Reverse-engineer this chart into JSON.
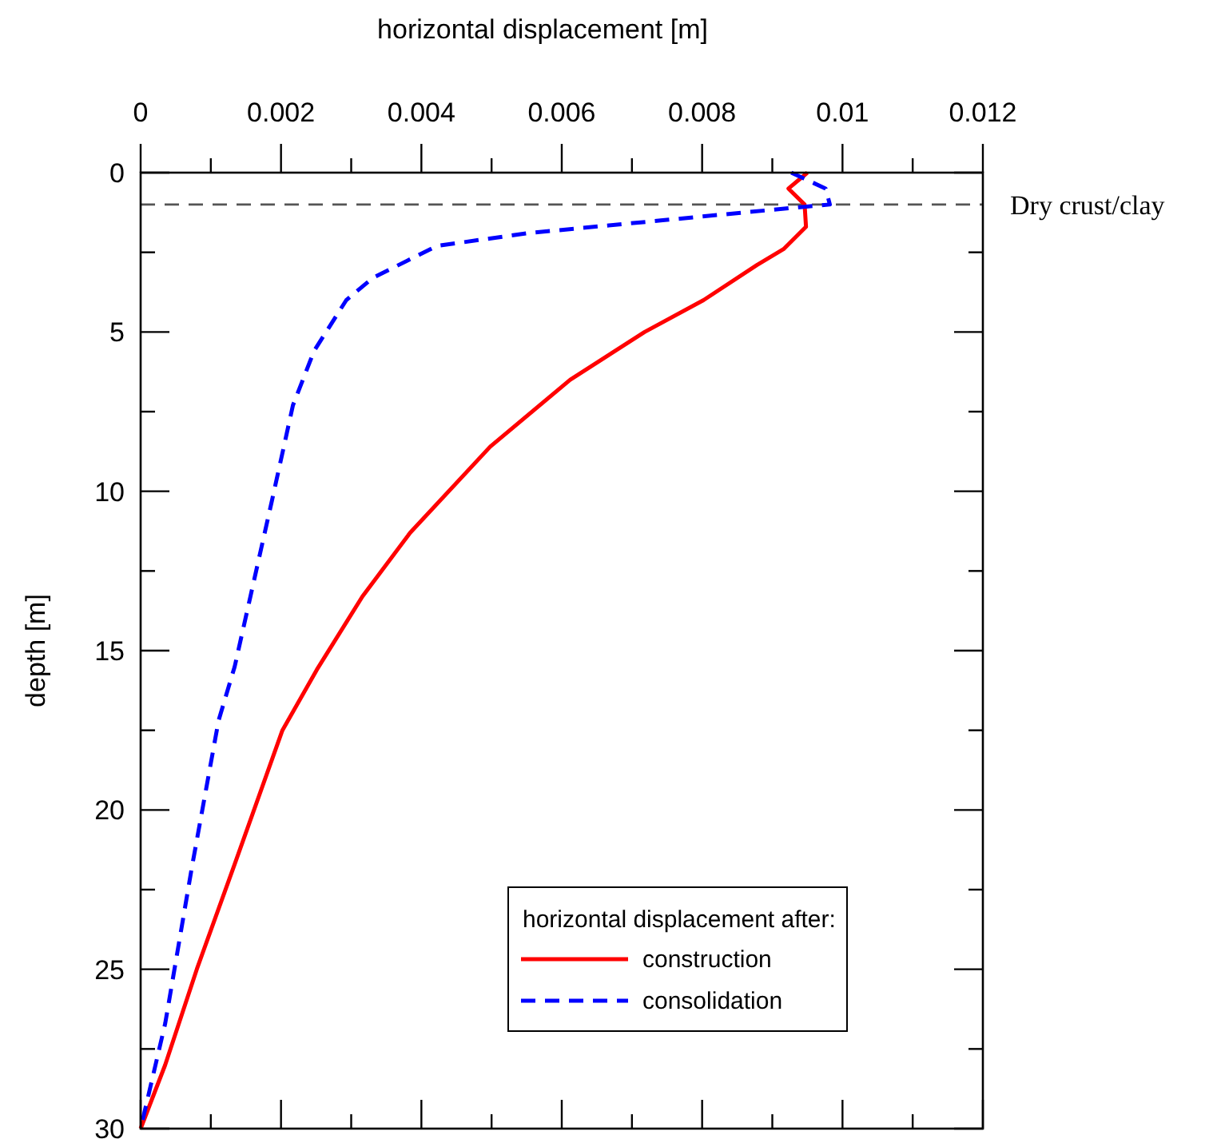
{
  "chart_data": {
    "type": "line",
    "xlabel": "horizontal displacement [m]",
    "ylabel": "depth [m]",
    "legend_title": "horizontal displacement after:",
    "legend": "bottom right",
    "xlim": [
      0,
      0.012
    ],
    "xticks": [
      0,
      {
        "value": 0.001,
        "label": null
      },
      0.002,
      {
        "value": 0.003,
        "label": null
      },
      0.004,
      {
        "value": 0.005,
        "label": null
      },
      0.006,
      {
        "value": 0.007,
        "label": null
      },
      0.008,
      {
        "value": 0.009,
        "label": null
      },
      0.01,
      {
        "value": 0.011,
        "label": null
      },
      0.012
    ],
    "ylim": [
      30,
      0
    ],
    "yticks": [
      0,
      {
        "value": 2.5,
        "label": null
      },
      5,
      {
        "value": 7.5,
        "label": null
      },
      10,
      {
        "value": 12.5,
        "label": null
      },
      15,
      {
        "value": 17.5,
        "label": null
      },
      20,
      {
        "value": 22.5,
        "label": null
      },
      25,
      {
        "value": 27.5,
        "label": null
      },
      30
    ],
    "ref_lines": [
      {
        "axis": "y",
        "value": 1,
        "label": "Dry crust/clay",
        "color": "#555555",
        "line_style": "dashed"
      }
    ],
    "series": [
      {
        "name": "construction",
        "color": "#ff0000",
        "line_style": "solid",
        "x": [
          0.0095,
          0.00923,
          0.00946,
          0.00948,
          0.00916,
          0.00878,
          0.00802,
          0.00718,
          0.00612,
          0.00498,
          0.00384,
          0.00316,
          0.00251,
          0.00202,
          0.00134,
          0.0008,
          0.00035,
          0
        ],
        "values": [
          0,
          0.5,
          1,
          1.7,
          2.4,
          2.9,
          4,
          5,
          6.5,
          8.6,
          11.3,
          13.3,
          15.6,
          17.5,
          21.7,
          25,
          28,
          30
        ]
      },
      {
        "name": "consolidation",
        "color": "#0000ff",
        "line_style": "dashed",
        "x": [
          0.00927,
          0.00976,
          0.00982,
          0.00931,
          0.00741,
          0.00551,
          0.00422,
          0.00331,
          0.00293,
          0.00247,
          0.00217,
          0.00187,
          0.00134,
          0.00111,
          0.00073,
          0.00035,
          0
        ],
        "values": [
          0,
          0.5,
          1,
          1.1,
          1.5,
          1.9,
          2.3,
          3.3,
          4,
          5.6,
          7.3,
          10.3,
          15.5,
          17.2,
          21.8,
          26.7,
          30
        ]
      }
    ]
  }
}
